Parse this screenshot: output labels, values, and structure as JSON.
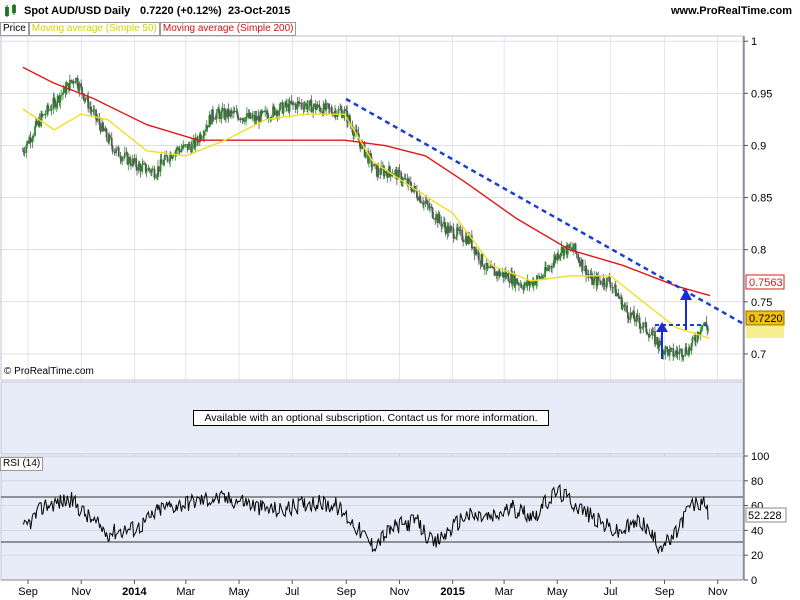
{
  "header": {
    "symbol": "Spot AUD/USD",
    "period": "Daily",
    "quote": "0.7220 (+0.12%)",
    "date": "23-Oct-2015",
    "site": "www.ProRealTime.com"
  },
  "legend": {
    "price": "Price",
    "sma50": "Moving average (Simple 50)",
    "sma200": "Moving average (Simple 200)"
  },
  "copyright": "© ProRealTime.com",
  "subscription_message": "Available with an optional subscription. Contact us for more information.",
  "rsi_label": "RSI (14)",
  "colors": {
    "price_up": "#2a8a2a",
    "price_down": "#555555",
    "sma50": "#f0e020",
    "sma200": "#e01818",
    "trendline": "#1a3fd0",
    "arrow": "#1a2ad8",
    "panel_bg": "#eaeefa",
    "grid": "#c8cce0"
  },
  "chart_data": [
    {
      "type": "line",
      "title": "Spot AUD/USD Daily",
      "y_ticks": [
        "1",
        "0.95",
        "0.9",
        "0.85",
        "0.8",
        "0.75",
        "0.7"
      ],
      "ylim": [
        0.675,
        1.005
      ],
      "x_ticks": [
        "Sep",
        "Nov",
        "2014",
        "Mar",
        "May",
        "Jul",
        "Sep",
        "Nov",
        "2015",
        "Mar",
        "May",
        "Jul",
        "Sep",
        "Nov"
      ],
      "price_labels": {
        "last": "0.7220",
        "sma200_last": "0.7563"
      },
      "series": [
        {
          "name": "Price",
          "x": [
            "2013-08-26",
            "2013-09-15",
            "2013-10-05",
            "2013-10-25",
            "2013-11-15",
            "2013-12-10",
            "2014-01-05",
            "2014-01-25",
            "2014-02-15",
            "2014-03-10",
            "2014-04-01",
            "2014-04-25",
            "2014-05-20",
            "2014-06-15",
            "2014-07-10",
            "2014-08-05",
            "2014-08-30",
            "2014-09-15",
            "2014-10-05",
            "2014-10-25",
            "2014-11-15",
            "2014-12-05",
            "2014-12-25",
            "2015-01-20",
            "2015-02-10",
            "2015-03-05",
            "2015-03-25",
            "2015-04-15",
            "2015-05-05",
            "2015-05-20",
            "2015-06-10",
            "2015-06-30",
            "2015-07-20",
            "2015-08-10",
            "2015-08-30",
            "2015-09-10",
            "2015-09-30",
            "2015-10-15",
            "2015-10-23"
          ],
          "values": [
            0.895,
            0.925,
            0.945,
            0.965,
            0.93,
            0.895,
            0.88,
            0.875,
            0.895,
            0.9,
            0.93,
            0.93,
            0.925,
            0.935,
            0.94,
            0.935,
            0.932,
            0.905,
            0.875,
            0.875,
            0.86,
            0.84,
            0.82,
            0.81,
            0.78,
            0.775,
            0.765,
            0.775,
            0.8,
            0.8,
            0.77,
            0.77,
            0.74,
            0.725,
            0.705,
            0.7,
            0.705,
            0.73,
            0.722
          ]
        },
        {
          "name": "Moving average (Simple 50)",
          "x": [
            "2013-08-26",
            "2013-10-01",
            "2013-11-01",
            "2013-12-01",
            "2014-01-15",
            "2014-03-01",
            "2014-04-15",
            "2014-06-01",
            "2014-07-15",
            "2014-08-30",
            "2014-10-01",
            "2014-11-15",
            "2015-01-01",
            "2015-02-15",
            "2015-04-01",
            "2015-05-15",
            "2015-07-01",
            "2015-08-15",
            "2015-09-15",
            "2015-10-23"
          ],
          "values": [
            0.935,
            0.915,
            0.93,
            0.925,
            0.895,
            0.89,
            0.905,
            0.925,
            0.93,
            0.93,
            0.885,
            0.86,
            0.835,
            0.785,
            0.77,
            0.775,
            0.775,
            0.745,
            0.725,
            0.715
          ]
        },
        {
          "name": "Moving average (Simple 200)",
          "x": [
            "2013-08-26",
            "2013-09-30",
            "2013-11-15",
            "2014-01-15",
            "2014-03-15",
            "2014-05-15",
            "2014-07-15",
            "2014-08-30",
            "2014-10-15",
            "2014-12-01",
            "2015-01-15",
            "2015-03-15",
            "2015-05-15",
            "2015-07-15",
            "2015-09-15",
            "2015-10-23"
          ],
          "values": [
            0.975,
            0.96,
            0.945,
            0.92,
            0.905,
            0.905,
            0.905,
            0.905,
            0.9,
            0.89,
            0.865,
            0.83,
            0.8,
            0.785,
            0.765,
            0.756
          ]
        }
      ]
    },
    {
      "type": "line",
      "title": "RSI (14)",
      "y_ticks": [
        "100",
        "80",
        "60",
        "40",
        "20",
        "0"
      ],
      "ylim": [
        0,
        100
      ],
      "reference_lines": [
        70,
        30
      ],
      "last_value_label": "52.228",
      "series": [
        {
          "name": "RSI (14)",
          "x": [
            "2013-08-26",
            "2013-09-20",
            "2013-10-20",
            "2013-11-10",
            "2013-12-01",
            "2014-01-05",
            "2014-02-01",
            "2014-03-01",
            "2014-04-01",
            "2014-05-05",
            "2014-05-25",
            "2014-06-20",
            "2014-07-20",
            "2014-08-20",
            "2014-09-10",
            "2014-10-01",
            "2014-10-25",
            "2014-11-20",
            "2014-12-10",
            "2015-01-15",
            "2015-02-15",
            "2015-03-10",
            "2015-04-05",
            "2015-05-01",
            "2015-05-20",
            "2015-06-15",
            "2015-07-10",
            "2015-08-05",
            "2015-08-25",
            "2015-09-10",
            "2015-09-30",
            "2015-10-15",
            "2015-10-23"
          ],
          "values": [
            40,
            60,
            65,
            50,
            38,
            42,
            58,
            62,
            66,
            64,
            58,
            56,
            63,
            60,
            45,
            28,
            42,
            48,
            28,
            52,
            50,
            58,
            52,
            72,
            62,
            48,
            38,
            48,
            28,
            32,
            60,
            62,
            52
          ]
        }
      ]
    }
  ]
}
